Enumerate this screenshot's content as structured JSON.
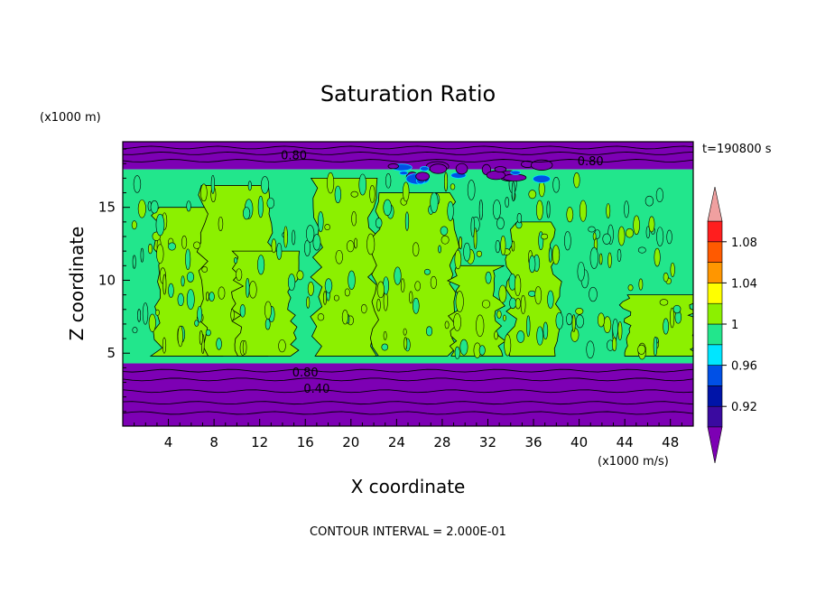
{
  "chart_data": {
    "type": "heatmap",
    "title": "Saturation Ratio",
    "xlabel": "X coordinate",
    "ylabel": "Z coordinate",
    "x_unit": "(x1000 m/s)",
    "y_unit": "(x1000 m)",
    "time_label": "t=190800 s",
    "footer": "CONTOUR INTERVAL = 2.000E-01",
    "xlim": [
      0,
      50
    ],
    "ylim": [
      0,
      19.5
    ],
    "x_ticks": [
      "4",
      "8",
      "12",
      "16",
      "20",
      "24",
      "28",
      "32",
      "36",
      "40",
      "44",
      "48"
    ],
    "x_tick_values": [
      4,
      8,
      12,
      16,
      20,
      24,
      28,
      32,
      36,
      40,
      44,
      48
    ],
    "y_ticks": [
      "5",
      "10",
      "15"
    ],
    "y_tick_values": [
      5,
      10,
      15
    ],
    "contour_labels": [
      {
        "text": "0.80",
        "x": 15,
        "y": 18.6
      },
      {
        "text": "0.80",
        "x": 41,
        "y": 18.2
      },
      {
        "text": "0.80",
        "x": 16,
        "y": 3.7
      },
      {
        "text": "0.40",
        "x": 17,
        "y": 2.6
      }
    ],
    "colorbar": {
      "tick_labels": [
        "1.08",
        "1.04",
        "1",
        "0.96",
        "0.92"
      ],
      "tick_values": [
        1.08,
        1.04,
        1.0,
        0.96,
        0.92
      ],
      "levels": [
        0.9,
        0.92,
        0.94,
        0.96,
        0.98,
        1.0,
        1.02,
        1.04,
        1.06,
        1.08,
        1.1
      ],
      "colors": [
        "#3a0aa0",
        "#0014a8",
        "#0050e6",
        "#00e6ff",
        "#22e68c",
        "#8cf000",
        "#ffff00",
        "#ff9600",
        "#ff5a00",
        "#ff1e1e"
      ],
      "under_color": "#7d00b4",
      "over_color": "#f0a0a0"
    },
    "regions": [
      {
        "name": "upper dry layer",
        "z_range": [
          17.6,
          19.5
        ],
        "value_class": "<0.90",
        "color": "#7d00b4"
      },
      {
        "name": "cloud layer",
        "z_range": [
          4.3,
          17.6
        ],
        "value_class": "0.98-1.02",
        "colors": [
          "#22e68c",
          "#8cf000"
        ]
      },
      {
        "name": "lower dry layer",
        "z_range": [
          0,
          4.3
        ],
        "value_class": "<0.90",
        "color": "#7d00b4"
      }
    ]
  }
}
